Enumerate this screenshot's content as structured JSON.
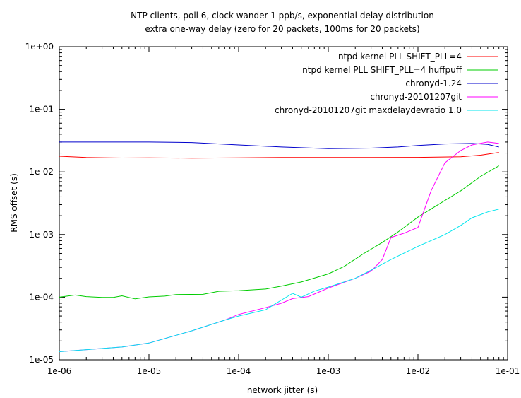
{
  "chart_data": {
    "type": "line",
    "title": "NTP clients, poll 6, clock wander 1 ppb/s, exponential delay distribution",
    "subtitle": "extra one-way delay (zero for 20 packets, 100ms for 20 packets)",
    "xlabel": "network jitter (s)",
    "ylabel": "RMS offset (s)",
    "x_scale": "log",
    "y_scale": "log",
    "xlim": [
      1e-06,
      0.1
    ],
    "ylim": [
      1e-05,
      1
    ],
    "x_ticks": [
      {
        "v": 1e-06,
        "label": "1e-06"
      },
      {
        "v": 1e-05,
        "label": "1e-05"
      },
      {
        "v": 0.0001,
        "label": "1e-04"
      },
      {
        "v": 0.001,
        "label": "1e-03"
      },
      {
        "v": 0.01,
        "label": "1e-02"
      },
      {
        "v": 0.1,
        "label": "1e-01"
      }
    ],
    "y_ticks": [
      {
        "v": 1e-05,
        "label": "1e-05"
      },
      {
        "v": 0.0001,
        "label": "1e-04"
      },
      {
        "v": 0.001,
        "label": "1e-03"
      },
      {
        "v": 0.01,
        "label": "1e-02"
      },
      {
        "v": 0.1,
        "label": "1e-01"
      },
      {
        "v": 1,
        "label": "1e+00"
      }
    ],
    "grid": false,
    "legend_position": "top-right",
    "series": [
      {
        "name": "ntpd kernel PLL SHIFT_PLL=4",
        "color": "#ff0000",
        "points": [
          [
            1e-06,
            0.0178
          ],
          [
            2e-06,
            0.017
          ],
          [
            5e-06,
            0.0167
          ],
          [
            1e-05,
            0.0168
          ],
          [
            3e-05,
            0.0166
          ],
          [
            0.0001,
            0.0168
          ],
          [
            0.0003,
            0.017
          ],
          [
            0.001,
            0.017
          ],
          [
            0.003,
            0.017
          ],
          [
            0.01,
            0.0171
          ],
          [
            0.03,
            0.0175
          ],
          [
            0.05,
            0.0185
          ],
          [
            0.08,
            0.0205
          ]
        ]
      },
      {
        "name": "ntpd kernel PLL SHIFT_PLL=4 huffpuff",
        "color": "#00cc00",
        "points": [
          [
            1e-06,
            0.0001
          ],
          [
            1.5e-06,
            0.000108
          ],
          [
            2e-06,
            0.000102
          ],
          [
            3e-06,
            9.9e-05
          ],
          [
            4e-06,
            9.9e-05
          ],
          [
            5e-06,
            0.000105
          ],
          [
            7e-06,
            9.4e-05
          ],
          [
            1e-05,
            0.000101
          ],
          [
            1.5e-05,
            0.000104
          ],
          [
            2e-05,
            0.00011
          ],
          [
            4e-05,
            0.000111
          ],
          [
            6e-05,
            0.000124
          ],
          [
            0.0001,
            0.000127
          ],
          [
            0.0002,
            0.000135
          ],
          [
            0.0003,
            0.00015
          ],
          [
            0.0005,
            0.000175
          ],
          [
            0.001,
            0.000235
          ],
          [
            0.0015,
            0.00031
          ],
          [
            0.0025,
            0.0005
          ],
          [
            0.004,
            0.00075
          ],
          [
            0.006,
            0.0011
          ],
          [
            0.01,
            0.0019
          ],
          [
            0.02,
            0.0035
          ],
          [
            0.03,
            0.005
          ],
          [
            0.05,
            0.0085
          ],
          [
            0.08,
            0.0125
          ]
        ]
      },
      {
        "name": "chronyd-1.24",
        "color": "#0000cc",
        "points": [
          [
            1e-06,
            0.03
          ],
          [
            1e-05,
            0.03
          ],
          [
            3e-05,
            0.0295
          ],
          [
            0.0001,
            0.027
          ],
          [
            0.0003,
            0.025
          ],
          [
            0.001,
            0.0235
          ],
          [
            0.003,
            0.024
          ],
          [
            0.006,
            0.025
          ],
          [
            0.01,
            0.0265
          ],
          [
            0.02,
            0.028
          ],
          [
            0.04,
            0.0285
          ],
          [
            0.06,
            0.0275
          ],
          [
            0.08,
            0.025
          ]
        ]
      },
      {
        "name": "chronyd-20101207git",
        "color": "#ff00ff",
        "points": [
          [
            1e-06,
            1.35e-05
          ],
          [
            5e-06,
            1.6e-05
          ],
          [
            1e-05,
            1.85e-05
          ],
          [
            3e-05,
            2.9e-05
          ],
          [
            7e-05,
            4.3e-05
          ],
          [
            0.0001,
            5.3e-05
          ],
          [
            0.0002,
            6.8e-05
          ],
          [
            0.0003,
            8e-05
          ],
          [
            0.0004,
            9.5e-05
          ],
          [
            0.0006,
            0.000102
          ],
          [
            0.001,
            0.00014
          ],
          [
            0.002,
            0.0002
          ],
          [
            0.003,
            0.00026
          ],
          [
            0.004,
            0.0004
          ],
          [
            0.005,
            0.0009
          ],
          [
            0.007,
            0.00105
          ],
          [
            0.01,
            0.0013
          ],
          [
            0.014,
            0.005
          ],
          [
            0.02,
            0.014
          ],
          [
            0.03,
            0.022
          ],
          [
            0.04,
            0.027
          ],
          [
            0.06,
            0.03
          ],
          [
            0.08,
            0.0285
          ]
        ]
      },
      {
        "name": "chronyd-20101207git maxdelaydevratio 1.0",
        "color": "#00e5ee",
        "points": [
          [
            1e-06,
            1.35e-05
          ],
          [
            5e-06,
            1.6e-05
          ],
          [
            1e-05,
            1.85e-05
          ],
          [
            3e-05,
            2.9e-05
          ],
          [
            7e-05,
            4.3e-05
          ],
          [
            0.0001,
            5e-05
          ],
          [
            0.0002,
            6.3e-05
          ],
          [
            0.0003,
            9e-05
          ],
          [
            0.0004,
            0.000115
          ],
          [
            0.0005,
            0.0001
          ],
          [
            0.0007,
            0.000125
          ],
          [
            0.001,
            0.000145
          ],
          [
            0.002,
            0.0002
          ],
          [
            0.003,
            0.00027
          ],
          [
            0.005,
            0.0004
          ],
          [
            0.01,
            0.00065
          ],
          [
            0.02,
            0.001
          ],
          [
            0.03,
            0.0014
          ],
          [
            0.04,
            0.00185
          ],
          [
            0.06,
            0.0023
          ],
          [
            0.08,
            0.00255
          ]
        ]
      }
    ]
  }
}
